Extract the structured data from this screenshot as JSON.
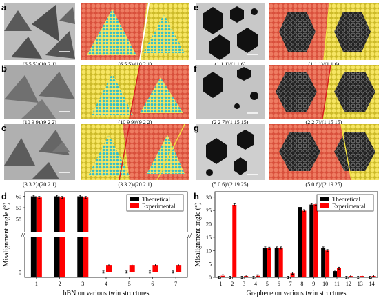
{
  "panels": {
    "a": {
      "label": "a",
      "caption": "(6 5 5)/(10 2 1)"
    },
    "b": {
      "label": "b",
      "caption": "(10 9 9)/(9 2 2)"
    },
    "c": {
      "label": "c",
      "caption": "(3 3 2)/(20 2 1)"
    },
    "d": {
      "label": "d"
    },
    "e": {
      "label": "e",
      "caption": "(1 1 1)/(1 1 6)"
    },
    "f": {
      "label": "f",
      "caption": "(2 2 7)/(1 15 15)"
    },
    "g": {
      "label": "g",
      "caption": "(5 0 6)/(2 19 25)"
    },
    "h": {
      "label": "h"
    }
  },
  "colors": {
    "theoretical": "#000000",
    "experimental": "#ff0000",
    "sem_bg": "#bdbdbd",
    "atom_red": "#e2624d",
    "atom_yellow": "#f2e04a",
    "atom_cyan": "#3cc8c8"
  },
  "chart_data": [
    {
      "type": "bar",
      "panel": "d",
      "categories": [
        "1",
        "2",
        "3",
        "4",
        "5",
        "6",
        "7"
      ],
      "xlabel": "hBN on various twin structures",
      "ylabel": "Misalignment angle (°)",
      "y_ticks_lower": [
        "0"
      ],
      "y_ticks_upper": [
        "58",
        "59",
        "60"
      ],
      "axis_break": true,
      "series": [
        {
          "name": "Theoretical",
          "values": [
            60,
            60,
            60,
            0,
            0,
            0,
            0
          ]
        },
        {
          "name": "Experimental",
          "values": [
            59.9,
            59.9,
            59.9,
            0.4,
            0.4,
            0.4,
            0.4
          ]
        }
      ],
      "legend_position": "top-right"
    },
    {
      "type": "bar",
      "panel": "h",
      "categories": [
        "1",
        "2",
        "3",
        "4",
        "5",
        "6",
        "7",
        "8",
        "9",
        "10",
        "11",
        "12",
        "13",
        "14"
      ],
      "xlabel": "Graphene on various twin structures",
      "ylabel": "Misalignment angle (°)",
      "ylim": [
        0,
        32
      ],
      "y_ticks": [
        "0",
        "5",
        "10",
        "15",
        "20",
        "25",
        "30"
      ],
      "series": [
        {
          "name": "Theoretical",
          "values": [
            0,
            0,
            0,
            0,
            11,
            11,
            0,
            26.3,
            27.2,
            11,
            2.3,
            0,
            0,
            0
          ]
        },
        {
          "name": "Experimental",
          "values": [
            0.6,
            27.1,
            0.5,
            0.6,
            10.9,
            11,
            1.5,
            24.9,
            27.3,
            10,
            3.4,
            0.5,
            0.5,
            0.5
          ]
        }
      ],
      "legend_position": "top-right"
    }
  ]
}
